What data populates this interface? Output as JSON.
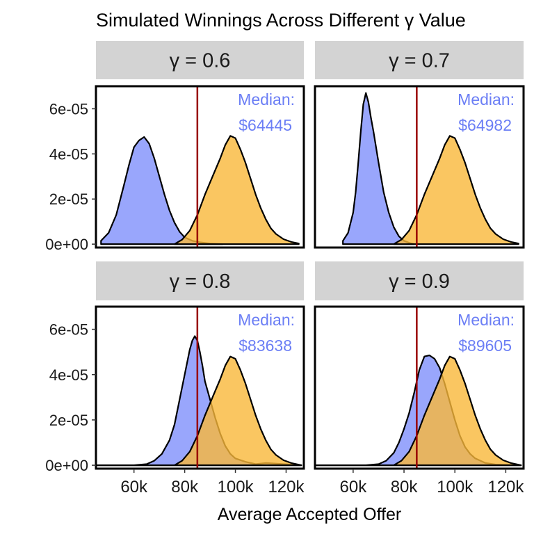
{
  "chart_data": {
    "type": "area",
    "title": "Simulated Winnings Across Different γ Value",
    "subtitle": "",
    "xlabel": "Average Accepted Offer",
    "ylabel": "",
    "xlim": [
      45000,
      127000
    ],
    "ylim": [
      -1.5e-11,
      7e-05
    ],
    "x_ticks": [
      60000,
      80000,
      100000,
      120000
    ],
    "x_tick_labels": [
      "60k",
      "80k",
      "100k",
      "120k"
    ],
    "y_ticks": [
      0,
      2e-05,
      4e-05,
      6e-05
    ],
    "y_tick_labels": [
      "0e+00",
      "2e-05",
      "4e-05",
      "6e-05"
    ],
    "reference_line": {
      "x": 85000,
      "color": "#990000"
    },
    "colors": {
      "gamma_series": "#8796fc",
      "baseline_series": "#f9b83a",
      "median_text": "#6b7ef5",
      "strip": "#d3d3d3"
    },
    "legend": "none",
    "grid": false,
    "panels": [
      {
        "strip": "γ = 0.6",
        "median_label": "Median:",
        "median_value": "$64445",
        "series": [
          {
            "x": [
              47000,
              50000,
              53000,
              56000,
              58000,
              60000,
              62000,
              64000,
              66000,
              68000,
              70000,
              72000,
              74000,
              76000,
              78000,
              80000,
              83000,
              86000,
              90000,
              95000
            ],
            "y": [
              1.5e-06,
              5e-06,
              1.3e-05,
              2.6e-05,
              3.5e-05,
              4.3e-05,
              4.6e-05,
              4.75e-05,
              4.45e-05,
              3.8e-05,
              3e-05,
              2.2e-05,
              1.5e-05,
              9.5e-06,
              5.5e-06,
              3e-06,
              1.5e-06,
              8e-07,
              3e-07,
              0
            ]
          },
          {
            "x": [
              76000,
              79000,
              82000,
              85000,
              88000,
              91000,
              94000,
              96000,
              98000,
              100000,
              102000,
              104000,
              106000,
              108000,
              110000,
              112000,
              114000,
              116000,
              119000,
              122000,
              125000
            ],
            "y": [
              0,
              2e-06,
              6e-06,
              1.3e-05,
              2.2e-05,
              3e-05,
              3.8e-05,
              4.4e-05,
              4.8e-05,
              4.7e-05,
              4.2e-05,
              3.6e-05,
              2.9e-05,
              2.2e-05,
              1.6e-05,
              1.1e-05,
              7e-06,
              4.5e-06,
              2.2e-06,
              1e-06,
              3e-07
            ]
          }
        ]
      },
      {
        "strip": "γ = 0.7",
        "median_label": "Median:",
        "median_value": "$64982",
        "series": [
          {
            "x": [
              56000,
              58000,
              60000,
              61000,
              62000,
              63000,
              64000,
              65000,
              66000,
              67000,
              68000,
              69000,
              70000,
              72000,
              74000,
              76000,
              78000,
              80000,
              82000,
              84000
            ],
            "y": [
              1.5e-06,
              5e-06,
              1.4e-05,
              2.3e-05,
              3.6e-05,
              5e-05,
              6.2e-05,
              6.7e-05,
              6.3e-05,
              5.6e-05,
              5e-05,
              4.3e-05,
              3.6e-05,
              2.3e-05,
              1.4e-05,
              7.5e-06,
              3.5e-06,
              1.5e-06,
              6e-07,
              0
            ]
          },
          {
            "x": [
              76000,
              79000,
              82000,
              85000,
              88000,
              91000,
              94000,
              96000,
              98000,
              100000,
              102000,
              104000,
              106000,
              108000,
              110000,
              112000,
              114000,
              116000,
              119000,
              122000,
              125000
            ],
            "y": [
              0,
              2e-06,
              6e-06,
              1.3e-05,
              2.2e-05,
              3e-05,
              3.8e-05,
              4.4e-05,
              4.8e-05,
              4.7e-05,
              4.2e-05,
              3.6e-05,
              2.9e-05,
              2.2e-05,
              1.6e-05,
              1.1e-05,
              7e-06,
              4.5e-06,
              2.2e-06,
              1e-06,
              3e-07
            ]
          }
        ]
      },
      {
        "strip": "γ = 0.8",
        "median_label": "Median:",
        "median_value": "$83638",
        "series": [
          {
            "x": [
              45000,
              60000,
              65000,
              68000,
              71000,
              74000,
              76000,
              78000,
              80000,
              82000,
              83000,
              84000,
              85000,
              86000,
              87000,
              88000,
              90000,
              92000,
              94000,
              96000,
              98000,
              100000,
              104000,
              108000,
              112000,
              126000
            ],
            "y": [
              0,
              0,
              5e-07,
              2e-06,
              5e-06,
              1.1e-05,
              1.8e-05,
              2.9e-05,
              4e-05,
              5.1e-05,
              5.5e-05,
              5.7e-05,
              5.5e-05,
              5e-05,
              4.4e-05,
              3.7e-05,
              2.9e-05,
              2.1e-05,
              1.4e-05,
              8.5e-06,
              5e-06,
              3e-06,
              1.5e-06,
              5e-07,
              1e-06,
              0
            ]
          },
          {
            "x": [
              45000,
              76000,
              79000,
              82000,
              85000,
              88000,
              91000,
              94000,
              96000,
              98000,
              100000,
              102000,
              104000,
              106000,
              108000,
              110000,
              112000,
              114000,
              116000,
              119000,
              122000,
              126000
            ],
            "y": [
              0,
              0,
              2e-06,
              6e-06,
              1.3e-05,
              2.2e-05,
              3e-05,
              3.8e-05,
              4.4e-05,
              4.8e-05,
              4.7e-05,
              4.2e-05,
              3.6e-05,
              2.9e-05,
              2.2e-05,
              1.6e-05,
              1.1e-05,
              7e-06,
              4.5e-06,
              2.2e-06,
              1e-06,
              0
            ]
          }
        ]
      },
      {
        "strip": "γ = 0.9",
        "median_label": "Median:",
        "median_value": "$89605",
        "series": [
          {
            "x": [
              45000,
              65000,
              70000,
              73000,
              76000,
              78000,
              80000,
              82000,
              84000,
              86000,
              88000,
              90000,
              92000,
              94000,
              96000,
              98000,
              100000,
              102000,
              104000,
              106000,
              108000,
              112000,
              116000,
              126000
            ],
            "y": [
              0,
              0,
              5e-07,
              2e-06,
              5.5e-06,
              1e-05,
              1.6e-05,
              2.3e-05,
              3.2e-05,
              4.2e-05,
              4.8e-05,
              4.85e-05,
              4.7e-05,
              4.3e-05,
              3.6e-05,
              2.8e-05,
              2e-05,
              1.3e-05,
              8e-06,
              5e-06,
              3e-06,
              1e-06,
              3e-07,
              0
            ]
          },
          {
            "x": [
              45000,
              76000,
              79000,
              82000,
              85000,
              88000,
              91000,
              94000,
              96000,
              98000,
              100000,
              102000,
              104000,
              106000,
              108000,
              110000,
              112000,
              114000,
              116000,
              119000,
              122000,
              126000
            ],
            "y": [
              0,
              0,
              2e-06,
              6e-06,
              1.3e-05,
              2.2e-05,
              3e-05,
              3.8e-05,
              4.4e-05,
              4.8e-05,
              4.7e-05,
              4.2e-05,
              3.6e-05,
              2.9e-05,
              2.2e-05,
              1.6e-05,
              1.1e-05,
              7e-06,
              4.5e-06,
              2.2e-06,
              1e-06,
              0
            ]
          }
        ]
      }
    ]
  }
}
